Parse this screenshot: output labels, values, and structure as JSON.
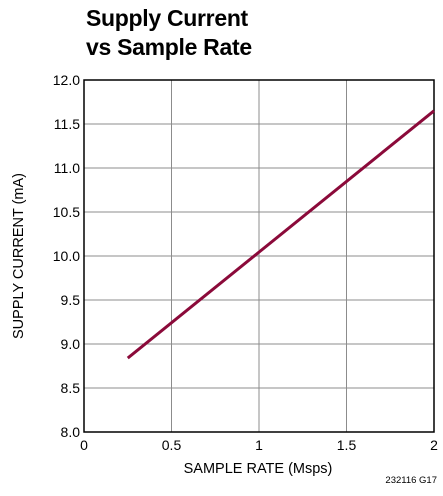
{
  "chart_data": {
    "type": "line",
    "title_lines": [
      "Supply Current",
      "vs Sample Rate"
    ],
    "xlabel": "SAMPLE RATE (Msps)",
    "ylabel": "SUPPLY CURRENT (mA)",
    "xlim": [
      0,
      2
    ],
    "ylim": [
      8.0,
      12.0
    ],
    "x_ticks": [
      0,
      0.5,
      1,
      1.5,
      2
    ],
    "x_tick_labels": [
      "0",
      "0.5",
      "1",
      "1.5",
      "2"
    ],
    "y_ticks": [
      8.0,
      8.5,
      9.0,
      9.5,
      10.0,
      10.5,
      11.0,
      11.5,
      12.0
    ],
    "y_tick_labels": [
      "8.0",
      "8.5",
      "9.0",
      "9.5",
      "10.0",
      "10.5",
      "11.0",
      "11.5",
      "12.0"
    ],
    "grid": true,
    "series": [
      {
        "color": "#8b0a3a",
        "x": [
          0.25,
          2.0
        ],
        "y": [
          8.84,
          11.65
        ]
      }
    ],
    "figure_code": "232116 G17"
  }
}
